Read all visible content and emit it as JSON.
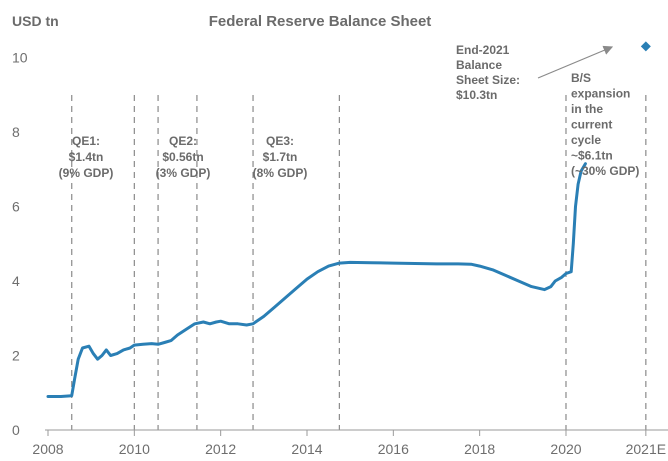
{
  "chart_data": {
    "type": "line",
    "title": "Federal Reserve Balance Sheet",
    "ylabel": "USD tn",
    "xlabel": "",
    "ylim": [
      0,
      11
    ],
    "xlim": [
      2008,
      2021.9
    ],
    "yticks": [
      "0",
      "2",
      "4",
      "6",
      "8",
      "10"
    ],
    "xticks": [
      "2008",
      "2010",
      "2012",
      "2014",
      "2016",
      "2018",
      "2020",
      "2021E"
    ],
    "grid": false,
    "series": [
      {
        "values": [
          [
            2008.0,
            0.9
          ],
          [
            2008.3,
            0.9
          ],
          [
            2008.55,
            0.92
          ],
          [
            2008.62,
            1.4
          ],
          [
            2008.7,
            1.9
          ],
          [
            2008.8,
            2.2
          ],
          [
            2008.95,
            2.25
          ],
          [
            2009.05,
            2.05
          ],
          [
            2009.15,
            1.9
          ],
          [
            2009.25,
            2.0
          ],
          [
            2009.35,
            2.15
          ],
          [
            2009.45,
            2.0
          ],
          [
            2009.6,
            2.05
          ],
          [
            2009.75,
            2.15
          ],
          [
            2009.9,
            2.2
          ],
          [
            2010.0,
            2.28
          ],
          [
            2010.2,
            2.3
          ],
          [
            2010.4,
            2.32
          ],
          [
            2010.55,
            2.3
          ],
          [
            2010.7,
            2.35
          ],
          [
            2010.85,
            2.4
          ],
          [
            2011.0,
            2.55
          ],
          [
            2011.2,
            2.7
          ],
          [
            2011.4,
            2.85
          ],
          [
            2011.6,
            2.9
          ],
          [
            2011.75,
            2.85
          ],
          [
            2011.9,
            2.9
          ],
          [
            2012.0,
            2.92
          ],
          [
            2012.2,
            2.85
          ],
          [
            2012.4,
            2.85
          ],
          [
            2012.6,
            2.82
          ],
          [
            2012.75,
            2.85
          ],
          [
            2013.0,
            3.05
          ],
          [
            2013.25,
            3.3
          ],
          [
            2013.5,
            3.55
          ],
          [
            2013.75,
            3.8
          ],
          [
            2014.0,
            4.05
          ],
          [
            2014.25,
            4.25
          ],
          [
            2014.5,
            4.4
          ],
          [
            2014.75,
            4.48
          ],
          [
            2015.0,
            4.5
          ],
          [
            2015.5,
            4.49
          ],
          [
            2016.0,
            4.48
          ],
          [
            2016.5,
            4.47
          ],
          [
            2017.0,
            4.46
          ],
          [
            2017.5,
            4.46
          ],
          [
            2017.8,
            4.45
          ],
          [
            2018.0,
            4.4
          ],
          [
            2018.3,
            4.3
          ],
          [
            2018.6,
            4.15
          ],
          [
            2018.9,
            4.0
          ],
          [
            2019.2,
            3.85
          ],
          [
            2019.5,
            3.77
          ],
          [
            2019.65,
            3.85
          ],
          [
            2019.75,
            4.0
          ],
          [
            2019.9,
            4.1
          ],
          [
            2020.0,
            4.2
          ],
          [
            2020.12,
            4.25
          ],
          [
            2020.17,
            5.0
          ],
          [
            2020.22,
            6.0
          ],
          [
            2020.28,
            6.6
          ],
          [
            2020.35,
            6.95
          ],
          [
            2020.45,
            7.15
          ]
        ]
      },
      {
        "type": "scatter",
        "values": [
          [
            2021.85,
            10.3
          ]
        ]
      }
    ],
    "vlines": [
      2008.55,
      2010.0,
      2010.55,
      2011.45,
      2012.75,
      2014.75,
      2020.0,
      2021.85
    ],
    "annotations": [
      {
        "lines": [
          "QE1:",
          "$1.4tn",
          "(9% GDP)"
        ]
      },
      {
        "lines": [
          "QE2:",
          "$0.56tn",
          "(3% GDP)"
        ]
      },
      {
        "lines": [
          "QE3:",
          "$1.7tn",
          "(8% GDP)"
        ]
      },
      {
        "lines": [
          "End-2021",
          "Balance",
          "Sheet Size:",
          "$10.3tn"
        ]
      },
      {
        "lines": [
          "B/S",
          "expansion",
          "in the",
          "current",
          "cycle",
          "~$6.1tn",
          "(~30% GDP)"
        ]
      }
    ],
    "colors": {
      "line": "#2a7fb5",
      "marker": "#2a7fb5",
      "vline": "#8a8a8a",
      "axis": "#9a9a9a",
      "text": "#6b6b6b"
    }
  }
}
